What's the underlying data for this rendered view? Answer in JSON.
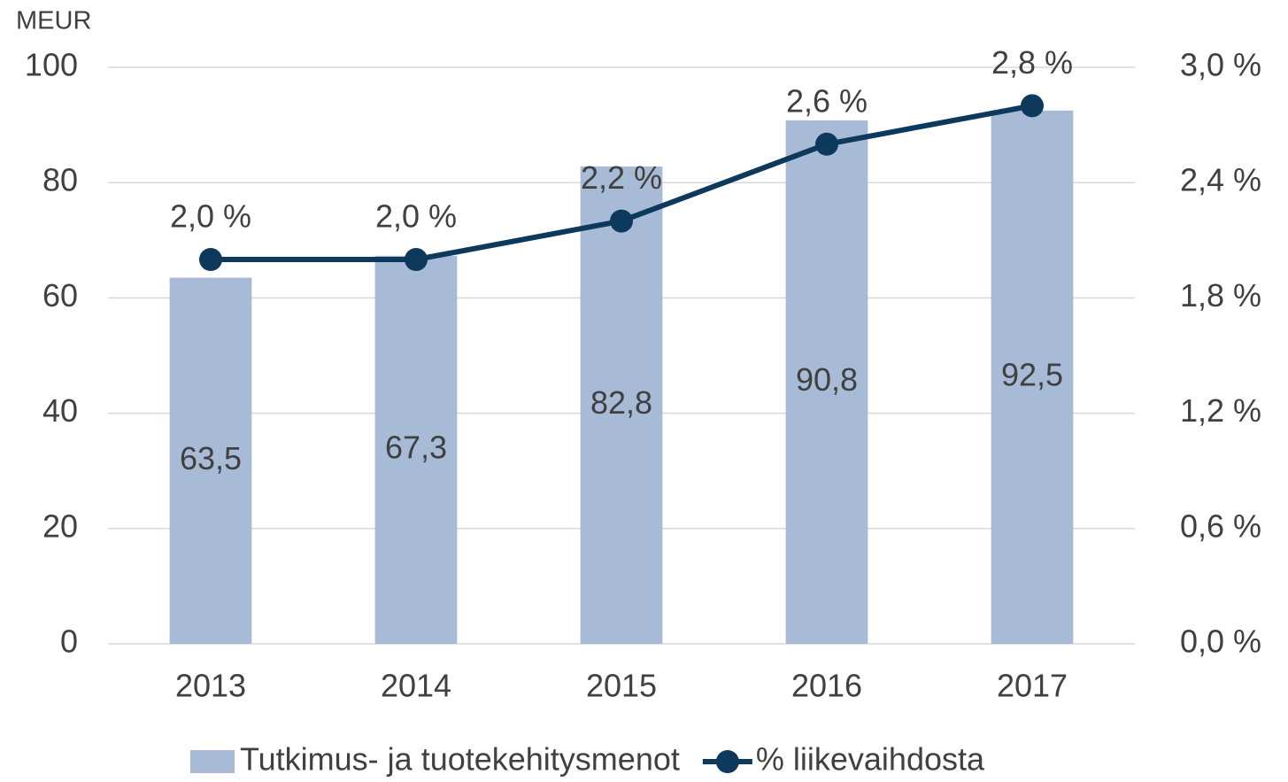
{
  "chart_data": {
    "type": "combo",
    "y_axis_label": "MEUR",
    "categories": [
      "2013",
      "2014",
      "2015",
      "2016",
      "2017"
    ],
    "series": [
      {
        "name": "Tutkimus- ja tuotekehitysmenot",
        "type": "bar",
        "color": "#a7bbd7",
        "values": [
          63.5,
          67.3,
          82.8,
          90.8,
          92.5
        ],
        "value_labels": [
          "63,5",
          "67,3",
          "82,8",
          "90,8",
          "92,5"
        ]
      },
      {
        "name": "% liikevaihdosta",
        "type": "line",
        "axis": "y2",
        "color": "#0d3a5c",
        "values": [
          2.0,
          2.0,
          2.2,
          2.6,
          2.8
        ],
        "value_labels": [
          "2,0 %",
          "2,0 %",
          "2,2 %",
          "2,6 %",
          "2,8 %"
        ]
      }
    ],
    "ylim": [
      0,
      100
    ],
    "yticks": [
      0,
      20,
      40,
      60,
      80,
      100
    ],
    "y2lim": [
      0,
      3
    ],
    "y2ticks": [
      {
        "value": 0,
        "label": "0,0 %"
      },
      {
        "value": 0.6,
        "label": "0,6 %"
      },
      {
        "value": 1.2,
        "label": "1,2 %"
      },
      {
        "value": 1.8,
        "label": "1,8 %"
      },
      {
        "value": 2.4,
        "label": "2,4 %"
      },
      {
        "value": 3.0,
        "label": "3,0 %"
      }
    ],
    "grid": true,
    "legend": "bottom"
  }
}
